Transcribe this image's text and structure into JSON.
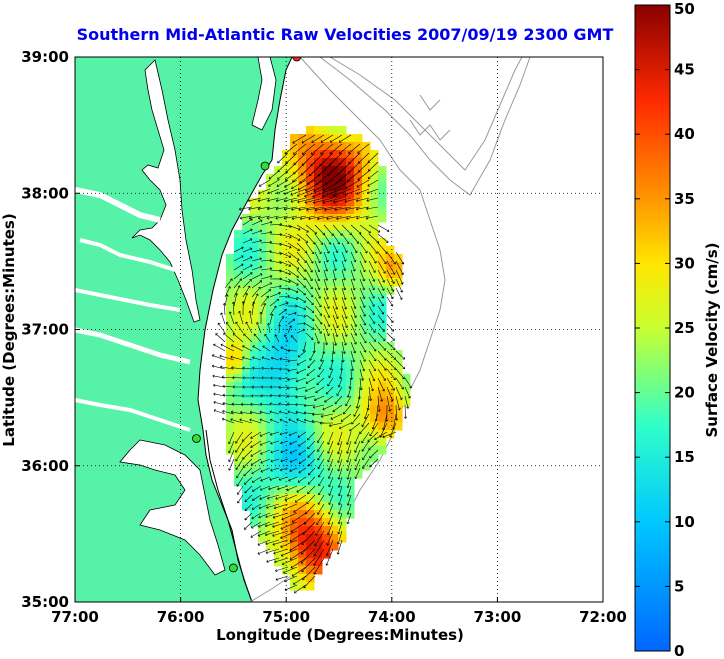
{
  "title": "Southern Mid-Atlantic Raw Velocities 2007/09/19 2300 GMT",
  "xlabel": "Longitude (Degrees:Minutes)",
  "ylabel": "Latitude (Degrees:Minutes)",
  "colorbar": {
    "label": "Surface Velocity (cm/s)",
    "min": 0,
    "max": 50,
    "ticks": [
      "0",
      "5",
      "10",
      "15",
      "20",
      "25",
      "30",
      "35",
      "40",
      "45",
      "50"
    ]
  },
  "x_ticks": [
    {
      "value": -77,
      "label": "77:00"
    },
    {
      "value": -76,
      "label": "76:00"
    },
    {
      "value": -75,
      "label": "75:00"
    },
    {
      "value": -74,
      "label": "74:00"
    },
    {
      "value": -73,
      "label": "73:00"
    },
    {
      "value": -72,
      "label": "72:00"
    }
  ],
  "y_ticks": [
    {
      "value": 35,
      "label": "35:00"
    },
    {
      "value": 36,
      "label": "36:00"
    },
    {
      "value": 37,
      "label": "37:00"
    },
    {
      "value": 38,
      "label": "38:00"
    },
    {
      "value": 39,
      "label": "39:00"
    }
  ],
  "map": {
    "lon_range": [
      -77,
      -72
    ],
    "lat_range": [
      35,
      39
    ],
    "grid": true,
    "colors": {
      "land": "#55f2a8",
      "water": "#ffffff",
      "coast": "#000000",
      "bathymetry": "#999999",
      "station": "#33dd33",
      "station_alt": "#ff2222"
    },
    "stations": [
      {
        "lon": -75.85,
        "lat": 36.2
      },
      {
        "lon": -75.2,
        "lat": 38.2
      },
      {
        "lon": -75.5,
        "lat": 35.25
      },
      {
        "lon": -74.9,
        "lat": 39.0,
        "alt": true
      }
    ]
  }
}
